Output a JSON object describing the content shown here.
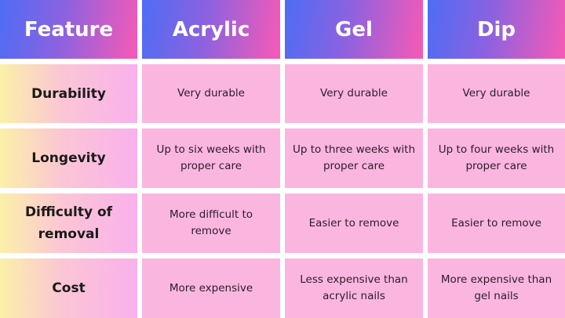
{
  "headers": [
    "Feature",
    "Acrylic",
    "Gel",
    "Dip"
  ],
  "rows": [
    {
      "feature": "Durability",
      "values": [
        "Very durable",
        "Very durable",
        "Very durable"
      ]
    },
    {
      "feature": "Longevity",
      "values": [
        "Up to six weeks with proper care",
        "Up to three weeks with proper care",
        "Up to four weeks with proper care"
      ]
    },
    {
      "feature": "Difficulty of removal",
      "values": [
        "More difficult to remove",
        "Easier to remove",
        "Easier to remove"
      ]
    },
    {
      "feature": "Cost",
      "values": [
        "More expensive",
        "Less expensive than acrylic nails",
        "More expensive than gel nails"
      ]
    }
  ],
  "colors": {
    "header_start": "#4d6df5",
    "header_end": "#f75ab5",
    "feature_start": "#fbf0a8",
    "feature_end": "#f9b0ec",
    "cell": "#fbb6df"
  }
}
